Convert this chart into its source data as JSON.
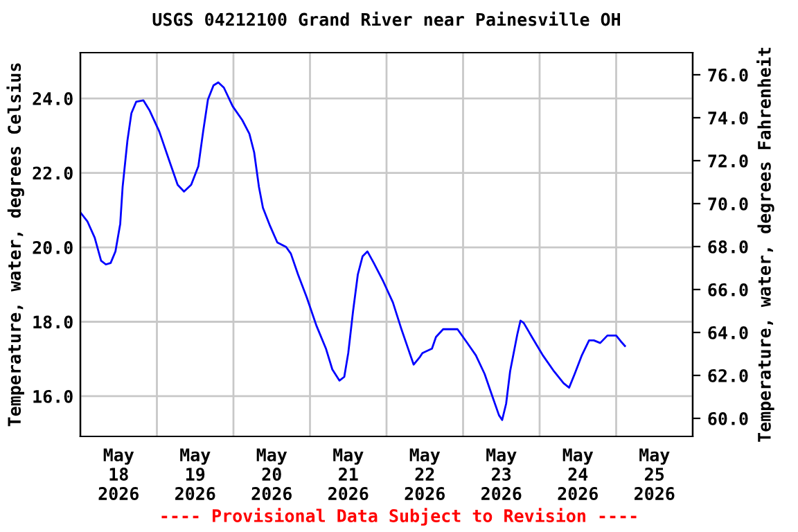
{
  "chart_data": {
    "type": "line",
    "title": "USGS 04212100 Grand River near Painesville OH",
    "ylabel": "Temperature, water, degrees Celsius",
    "y2label": "Temperature, water, degrees Fahrenheit",
    "annotations": [
      "---- Provisional Data Subject to Revision ----"
    ],
    "xlim": [
      "2026-05-18T00:00",
      "2026-05-26T00:00"
    ],
    "xticks": [
      {
        "value": "2026-05-18T00:00",
        "label": null
      },
      {
        "value": "2026-05-18T12:00",
        "label": "May\n18\n2026"
      },
      {
        "value": "2026-05-19T00:00",
        "label": null
      },
      {
        "value": "2026-05-19T12:00",
        "label": "May\n19\n2026"
      },
      {
        "value": "2026-05-20T00:00",
        "label": null
      },
      {
        "value": "2026-05-20T12:00",
        "label": "May\n20\n2026"
      },
      {
        "value": "2026-05-21T00:00",
        "label": null
      },
      {
        "value": "2026-05-21T12:00",
        "label": "May\n21\n2026"
      },
      {
        "value": "2026-05-22T00:00",
        "label": null
      },
      {
        "value": "2026-05-22T12:00",
        "label": "May\n22\n2026"
      },
      {
        "value": "2026-05-23T00:00",
        "label": null
      },
      {
        "value": "2026-05-23T12:00",
        "label": "May\n23\n2026"
      },
      {
        "value": "2026-05-24T00:00",
        "label": null
      },
      {
        "value": "2026-05-24T12:00",
        "label": "May\n24\n2026"
      },
      {
        "value": "2026-05-25T00:00",
        "label": null
      },
      {
        "value": "2026-05-25T12:00",
        "label": "May\n25\n2026"
      },
      {
        "value": "2026-05-26T00:00",
        "label": null
      }
    ],
    "ylim": [
      14.92,
      25.23
    ],
    "yticks": [
      {
        "value": 16,
        "label": "16.0"
      },
      {
        "value": 18,
        "label": "18.0"
      },
      {
        "value": 20,
        "label": "20.0"
      },
      {
        "value": 22,
        "label": "22.0"
      },
      {
        "value": 24,
        "label": "24.0"
      }
    ],
    "y2lim": [
      59.16,
      77.03
    ],
    "y2ticks": [
      {
        "value": 60,
        "label": "60.0"
      },
      {
        "value": 62,
        "label": "62.0"
      },
      {
        "value": 64,
        "label": "64.0"
      },
      {
        "value": 66,
        "label": "66.0"
      },
      {
        "value": 68,
        "label": "68.0"
      },
      {
        "value": 70,
        "label": "70.0"
      },
      {
        "value": 72,
        "label": "72.0"
      },
      {
        "value": 74,
        "label": "74.0"
      },
      {
        "value": 76,
        "label": "76.0"
      }
    ],
    "grid": true,
    "legend": false,
    "series": [
      {
        "color": "#0000ff",
        "x": [
          "2026-05-18T00:00",
          "2026-05-18T02:15",
          "2026-05-18T04:30",
          "2026-05-18T06:30",
          "2026-05-18T08:00",
          "2026-05-18T09:30",
          "2026-05-18T11:00",
          "2026-05-18T12:30",
          "2026-05-18T13:15",
          "2026-05-18T14:45",
          "2026-05-18T16:00",
          "2026-05-18T17:30",
          "2026-05-18T19:45",
          "2026-05-18T21:45",
          "2026-05-19T00:45",
          "2026-05-19T03:45",
          "2026-05-19T06:30",
          "2026-05-19T08:30",
          "2026-05-19T10:45",
          "2026-05-19T13:00",
          "2026-05-19T14:30",
          "2026-05-19T16:00",
          "2026-05-19T17:45",
          "2026-05-19T19:15",
          "2026-05-19T21:00",
          "2026-05-19T23:45",
          "2026-05-20T02:45",
          "2026-05-20T05:00",
          "2026-05-20T06:30",
          "2026-05-20T08:00",
          "2026-05-20T09:15",
          "2026-05-20T11:30",
          "2026-05-20T13:45",
          "2026-05-20T16:30",
          "2026-05-20T18:00",
          "2026-05-20T20:15",
          "2026-05-20T23:00",
          "2026-05-21T02:00",
          "2026-05-21T05:00",
          "2026-05-21T07:00",
          "2026-05-21T09:15",
          "2026-05-21T10:45",
          "2026-05-21T12:00",
          "2026-05-21T13:30",
          "2026-05-21T15:00",
          "2026-05-21T16:30",
          "2026-05-21T18:00",
          "2026-05-21T20:00",
          "2026-05-21T23:00",
          "2026-05-22T02:00",
          "2026-05-22T04:45",
          "2026-05-22T07:00",
          "2026-05-22T08:30",
          "2026-05-22T10:30",
          "2026-05-22T11:15",
          "2026-05-22T14:15",
          "2026-05-22T15:30",
          "2026-05-22T17:45",
          "2026-05-22T22:15",
          "2026-05-23T01:00",
          "2026-05-23T04:00",
          "2026-05-23T06:45",
          "2026-05-23T09:00",
          "2026-05-23T11:15",
          "2026-05-23T12:15",
          "2026-05-23T13:30",
          "2026-05-23T14:45",
          "2026-05-23T17:00",
          "2026-05-23T18:00",
          "2026-05-23T19:00",
          "2026-05-23T22:00",
          "2026-05-24T01:00",
          "2026-05-24T04:30",
          "2026-05-24T07:30",
          "2026-05-24T09:15",
          "2026-05-24T11:00",
          "2026-05-24T13:15",
          "2026-05-24T15:30",
          "2026-05-24T17:00",
          "2026-05-24T19:00",
          "2026-05-24T21:15",
          "2026-05-25T00:00",
          "2026-05-25T01:30",
          "2026-05-25T02:45"
        ],
        "values": [
          20.94,
          20.69,
          20.26,
          19.64,
          19.54,
          19.58,
          19.89,
          20.63,
          21.62,
          22.86,
          23.6,
          23.91,
          23.95,
          23.67,
          23.11,
          22.36,
          21.68,
          21.5,
          21.68,
          22.18,
          23.11,
          23.97,
          24.35,
          24.43,
          24.29,
          23.79,
          23.42,
          23.05,
          22.55,
          21.62,
          21.06,
          20.57,
          20.13,
          20.01,
          19.83,
          19.27,
          18.65,
          17.9,
          17.28,
          16.72,
          16.42,
          16.52,
          17.16,
          18.28,
          19.27,
          19.76,
          19.89,
          19.58,
          19.08,
          18.52,
          17.78,
          17.22,
          16.85,
          17.06,
          17.16,
          17.28,
          17.59,
          17.8,
          17.8,
          17.47,
          17.1,
          16.6,
          16.04,
          15.49,
          15.36,
          15.8,
          16.67,
          17.66,
          18.03,
          17.97,
          17.53,
          17.1,
          16.67,
          16.35,
          16.23,
          16.6,
          17.1,
          17.5,
          17.5,
          17.43,
          17.63,
          17.63,
          17.47,
          17.35
        ]
      }
    ]
  }
}
